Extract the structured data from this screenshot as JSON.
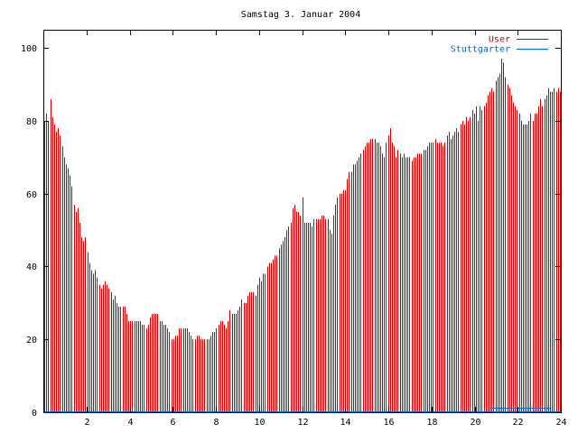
{
  "chart_data": {
    "type": "bar",
    "title": "Samstag 3. Januar 2004",
    "xlabel": "",
    "ylabel": "",
    "xlim": [
      0,
      24
    ],
    "ylim": [
      0,
      105
    ],
    "xticks": [
      2,
      4,
      6,
      8,
      10,
      12,
      14,
      16,
      18,
      20,
      22,
      24
    ],
    "yticks": [
      0,
      20,
      40,
      60,
      80,
      100
    ],
    "grid": false,
    "legend_position": "top-right",
    "series": [
      {
        "name": "User",
        "color": "#cc0000",
        "points_per_hour": 12,
        "values": [
          80,
          82,
          80,
          86,
          81,
          79,
          77,
          78,
          76,
          73,
          70,
          68,
          67,
          65,
          62,
          57,
          55,
          56,
          52,
          48,
          47,
          48,
          44,
          41,
          39,
          38,
          39,
          37,
          35,
          34,
          35,
          36,
          35,
          34,
          33,
          31,
          32,
          30,
          29,
          29,
          29,
          29,
          27,
          25,
          25,
          25,
          25,
          25,
          25,
          25,
          24,
          24,
          23,
          24,
          26,
          27,
          27,
          27,
          27,
          25,
          25,
          24,
          24,
          23,
          22,
          20,
          20,
          21,
          21,
          23,
          23,
          23,
          23,
          23,
          22,
          21,
          20,
          20,
          21,
          21,
          20,
          20,
          20,
          20,
          20,
          21,
          22,
          22,
          23,
          24,
          25,
          25,
          24,
          23,
          25,
          28,
          27,
          27,
          27,
          28,
          29,
          31,
          30,
          30,
          32,
          33,
          33,
          33,
          32,
          35,
          37,
          36,
          38,
          38,
          40,
          41,
          41,
          42,
          43,
          43,
          45,
          46,
          47,
          48,
          50,
          51,
          52,
          56,
          57,
          55,
          55,
          54,
          59,
          52,
          52,
          52,
          52,
          51,
          53,
          53,
          53,
          53,
          54,
          54,
          53,
          53,
          50,
          49,
          54,
          57,
          59,
          60,
          60,
          61,
          61,
          64,
          66,
          66,
          68,
          68,
          69,
          70,
          71,
          72,
          73,
          74,
          74,
          75,
          75,
          75,
          74,
          74,
          73,
          71,
          70,
          74,
          76,
          78,
          74,
          73,
          70,
          72,
          71,
          70,
          71,
          70,
          70,
          70,
          69,
          70,
          70,
          71,
          71,
          71,
          72,
          72,
          73,
          74,
          74,
          74,
          75,
          74,
          74,
          74,
          73,
          74,
          76,
          77,
          75,
          76,
          77,
          78,
          77,
          79,
          80,
          79,
          81,
          80,
          81,
          83,
          82,
          84,
          80,
          84,
          83,
          84,
          85,
          87,
          88,
          89,
          88,
          91,
          92,
          93,
          97,
          96,
          92,
          90,
          89,
          87,
          85,
          84,
          83,
          82,
          80,
          79,
          79,
          79,
          80,
          82,
          80,
          82,
          82,
          84,
          86,
          84,
          86,
          87,
          89,
          88,
          88,
          89,
          88,
          89,
          88
        ]
      },
      {
        "name": "Stuttgarter",
        "color": "#0066cc",
        "segments": [
          [
            0,
            24,
            0
          ],
          [
            20.7,
            23.5,
            1
          ]
        ]
      }
    ]
  }
}
